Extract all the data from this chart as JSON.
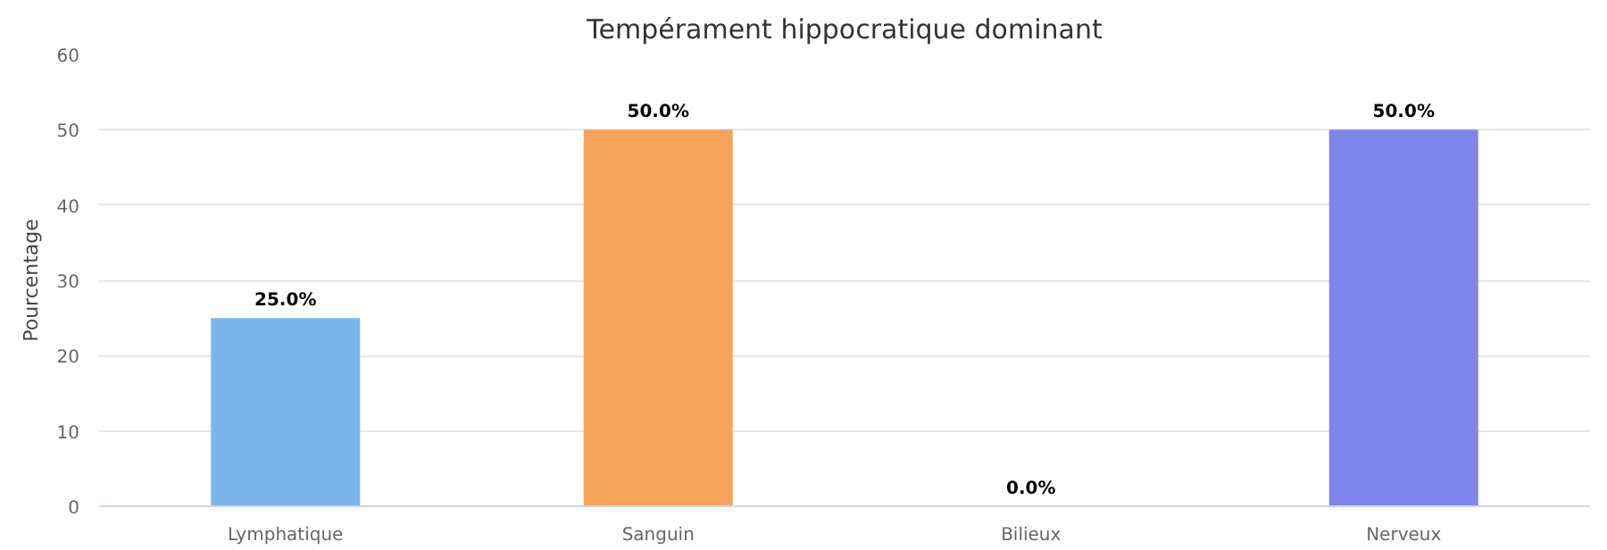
{
  "chart_data": {
    "type": "bar",
    "title": "Tempérament hippocratique dominant",
    "ylabel": "Pourcentage",
    "categories": [
      "Lymphatique",
      "Sanguin",
      "Bilieux",
      "Nerveux"
    ],
    "values": [
      25,
      50,
      0,
      50
    ],
    "colors": [
      "#7cb5ec",
      "#f7a35c",
      "#90ed7d",
      "#8085e9"
    ],
    "value_labels": [
      "25.0%",
      "50.0%",
      "0.0%",
      "50.0%"
    ],
    "ylim": [
      0,
      60
    ],
    "yticks": [
      0,
      10,
      20,
      30,
      40,
      50,
      60
    ],
    "grid": "y"
  }
}
